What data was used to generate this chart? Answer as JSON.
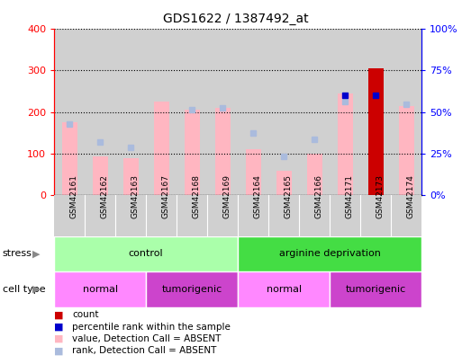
{
  "title": "GDS1622 / 1387492_at",
  "samples": [
    "GSM42161",
    "GSM42162",
    "GSM42163",
    "GSM42167",
    "GSM42168",
    "GSM42169",
    "GSM42164",
    "GSM42165",
    "GSM42166",
    "GSM42171",
    "GSM42173",
    "GSM42174"
  ],
  "value_absent": [
    175,
    93,
    88,
    225,
    205,
    210,
    110,
    57,
    100,
    245,
    305,
    215
  ],
  "rank_absent": [
    170,
    128,
    115,
    null,
    205,
    210,
    148,
    92,
    133,
    225,
    null,
    218
  ],
  "count": [
    null,
    null,
    null,
    null,
    null,
    null,
    null,
    null,
    null,
    null,
    305,
    null
  ],
  "percentile_rank": [
    null,
    null,
    null,
    null,
    null,
    null,
    null,
    null,
    null,
    60,
    60,
    null
  ],
  "ylim_left": [
    0,
    400
  ],
  "ylim_right": [
    0,
    100
  ],
  "yticks_left": [
    0,
    100,
    200,
    300,
    400
  ],
  "yticks_right": [
    0,
    25,
    50,
    75,
    100
  ],
  "ytick_labels_left": [
    "0",
    "100",
    "200",
    "300",
    "400"
  ],
  "ytick_labels_right": [
    "0%",
    "25%",
    "50%",
    "75%",
    "100%"
  ],
  "stress_groups": [
    {
      "label": "control",
      "start": 0,
      "end": 5,
      "color": "#aaffaa"
    },
    {
      "label": "arginine deprivation",
      "start": 6,
      "end": 11,
      "color": "#44dd44"
    }
  ],
  "cell_type_groups": [
    {
      "label": "normal",
      "start": 0,
      "end": 2,
      "color": "#ff88ff"
    },
    {
      "label": "tumorigenic",
      "start": 3,
      "end": 5,
      "color": "#cc44cc"
    },
    {
      "label": "normal",
      "start": 6,
      "end": 8,
      "color": "#ff88ff"
    },
    {
      "label": "tumorigenic",
      "start": 9,
      "end": 11,
      "color": "#cc44cc"
    }
  ],
  "color_value_absent": "#FFB6C1",
  "color_rank_absent": "#aabbdd",
  "color_count": "#CC0000",
  "color_percentile": "#0000CC",
  "col_bg": "#D0D0D0",
  "plot_bg": "#FFFFFF",
  "bar_width": 0.5
}
